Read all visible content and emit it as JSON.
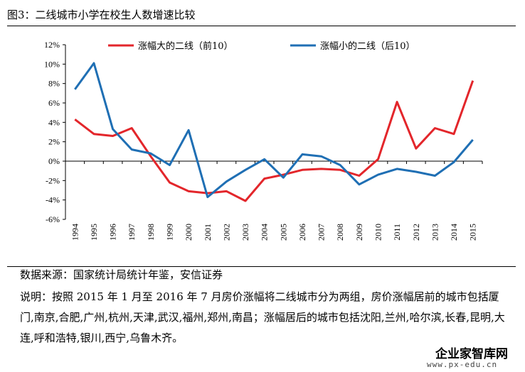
{
  "title": "图3：二线城市小学在校生人数增速比较",
  "source": "数据来源：国家统计局统计年鉴，安信证券",
  "note": "说明：按照 2015 年 1 月至 2016 年 7 月房价涨幅将二线城市分为两组，房价涨幅居前的城市包括厦门,南京,合肥,广州,杭州,天津,武汉,福州,郑州,南昌；涨幅居后的城市包括沈阳,兰州,哈尔滨,长春,昆明,大连,呼和浩特,银川,西宁,乌鲁木齐。",
  "watermark": {
    "name": "企业家智库网",
    "url": "www.px-edu.cn"
  },
  "chart_data": {
    "type": "line",
    "x": [
      "1994",
      "1995",
      "1996",
      "1997",
      "1998",
      "1999",
      "2000",
      "2001",
      "2002",
      "2003",
      "2004",
      "2005",
      "2006",
      "2007",
      "2008",
      "2009",
      "2010",
      "2011",
      "2012",
      "2013",
      "2014",
      "2015"
    ],
    "ylim": [
      -6,
      12
    ],
    "yticks": [
      "-6%",
      "-4%",
      "-2%",
      "0%",
      "2%",
      "4%",
      "6%",
      "8%",
      "10%",
      "12%"
    ],
    "grid": false,
    "legend_position": "top",
    "series": [
      {
        "name": "涨幅大的二线（前10）",
        "color": "#e3262b",
        "values": [
          4.3,
          2.8,
          2.6,
          3.4,
          0.5,
          -2.2,
          -3.1,
          -3.3,
          -3.1,
          -4.1,
          -1.8,
          -1.4,
          -0.9,
          -0.8,
          -0.9,
          -1.5,
          0.2,
          6.1,
          1.3,
          3.4,
          2.8,
          8.3
        ]
      },
      {
        "name": "涨幅小的二线（后10）",
        "color": "#1f6fb4",
        "values": [
          7.4,
          10.1,
          3.3,
          1.2,
          0.8,
          -0.4,
          3.2,
          -3.7,
          -2.1,
          -0.9,
          0.2,
          -1.7,
          0.7,
          0.5,
          -0.4,
          -2.4,
          -1.4,
          -0.8,
          -1.1,
          -1.5,
          -0.1,
          2.2
        ]
      }
    ]
  }
}
